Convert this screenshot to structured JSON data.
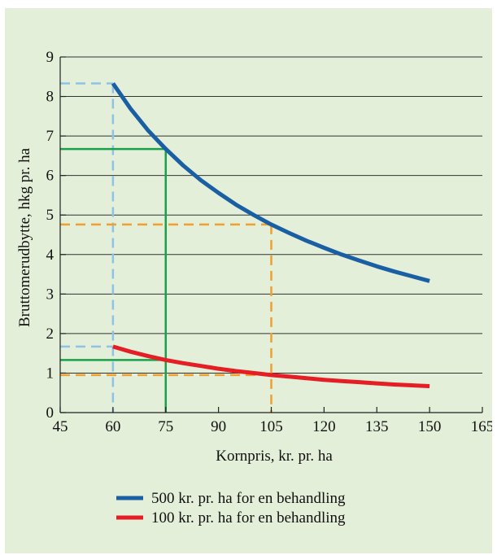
{
  "chart_data": {
    "type": "line",
    "xlabel": "Kornpris, kr. pr. ha",
    "ylabel": "Bruttomerudbytte, hkg pr. ha",
    "xlim": [
      45,
      165
    ],
    "ylim": [
      0,
      9
    ],
    "xticks": [
      45,
      60,
      75,
      90,
      105,
      120,
      135,
      150,
      165
    ],
    "yticks": [
      0,
      1,
      2,
      3,
      4,
      5,
      6,
      7,
      8,
      9
    ],
    "grid": "horizontal",
    "legend_position": "bottom",
    "series": [
      {
        "name": "500 kr. pr. ha for en behandling",
        "color": "#1a5fa3",
        "x": [
          60,
          65,
          70,
          75,
          80,
          85,
          90,
          95,
          100,
          105,
          110,
          115,
          120,
          125,
          130,
          135,
          140,
          145,
          150
        ],
        "y": [
          8.33,
          7.69,
          7.14,
          6.67,
          6.25,
          5.88,
          5.56,
          5.26,
          5.0,
          4.76,
          4.55,
          4.35,
          4.17,
          4.0,
          3.85,
          3.7,
          3.57,
          3.45,
          3.33
        ]
      },
      {
        "name": "100 kr. pr. ha for en behandling",
        "color": "#e51e25",
        "x": [
          60,
          65,
          70,
          75,
          80,
          85,
          90,
          95,
          100,
          105,
          110,
          115,
          120,
          125,
          130,
          135,
          140,
          145,
          150
        ],
        "y": [
          1.67,
          1.54,
          1.43,
          1.33,
          1.25,
          1.18,
          1.11,
          1.05,
          1.0,
          0.95,
          0.91,
          0.87,
          0.83,
          0.8,
          0.77,
          0.74,
          0.71,
          0.69,
          0.67
        ]
      }
    ],
    "reference_lines": [
      {
        "color": "#8fc3e6",
        "style": "dashed",
        "x": 60,
        "y_values": [
          8.33,
          1.67
        ]
      },
      {
        "color": "#19a04b",
        "style": "solid",
        "x": 75,
        "y_values": [
          6.67,
          1.33
        ]
      },
      {
        "color": "#f0a030",
        "style": "dashed",
        "x": 105,
        "y_values": [
          4.76,
          0.95
        ]
      }
    ]
  }
}
